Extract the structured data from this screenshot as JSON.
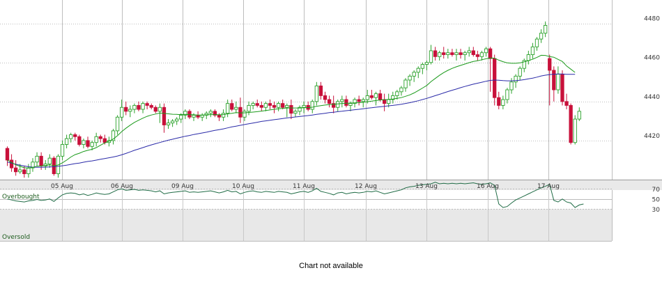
{
  "chart_data": [
    {
      "type": "candlestick",
      "x_tick_labels": [
        "05 Aug",
        "06 Aug",
        "09 Aug",
        "10 Aug",
        "11 Aug",
        "12 Aug",
        "13 Aug",
        "16 Aug",
        "17 Aug"
      ],
      "y_tick_labels": [
        "4420",
        "4440",
        "4460",
        "4480"
      ],
      "ylim": [
        4400,
        4492
      ],
      "grid": true,
      "colors": {
        "up": "#2aa12a",
        "down": "#c8103a",
        "sma_short": "#1a9a1a",
        "sma_long": "#2a2aa8",
        "grid": "#bdbdbd"
      },
      "candles": [
        [
          4416,
          4417,
          4407,
          4410
        ],
        [
          4410,
          4413,
          4404,
          4406
        ],
        [
          4406,
          4410,
          4402,
          4404
        ],
        [
          4404,
          4408,
          4403,
          4405
        ],
        [
          4405,
          4407,
          4401,
          4403
        ],
        [
          4403,
          4408,
          4401,
          4406
        ],
        [
          4406,
          4411,
          4404,
          4409
        ],
        [
          4409,
          4414,
          4407,
          4412
        ],
        [
          4412,
          4414,
          4405,
          4407
        ],
        [
          4407,
          4410,
          4405,
          4408
        ],
        [
          4408,
          4413,
          4406,
          4411
        ],
        [
          4411,
          4412,
          4402,
          4403
        ],
        [
          4403,
          4413,
          4401,
          4412
        ],
        [
          4412,
          4420,
          4410,
          4418
        ],
        [
          4418,
          4423,
          4416,
          4421
        ],
        [
          4421,
          4424,
          4419,
          4423
        ],
        [
          4423,
          4424,
          4420,
          4422
        ],
        [
          4422,
          4423,
          4417,
          4418
        ],
        [
          4418,
          4421,
          4416,
          4420
        ],
        [
          4420,
          4422,
          4416,
          4417
        ],
        [
          4417,
          4420,
          4415,
          4419
        ],
        [
          4419,
          4424,
          4417,
          4422
        ],
        [
          4422,
          4423,
          4419,
          4421
        ],
        [
          4421,
          4423,
          4418,
          4419
        ],
        [
          4419,
          4422,
          4417,
          4420
        ],
        [
          4420,
          4426,
          4418,
          4425
        ],
        [
          4425,
          4433,
          4423,
          4432
        ],
        [
          4432,
          4441,
          4430,
          4437
        ],
        [
          4437,
          4440,
          4433,
          4435
        ],
        [
          4435,
          4438,
          4432,
          4436
        ],
        [
          4436,
          4439,
          4434,
          4438
        ],
        [
          4438,
          4440,
          4435,
          4436
        ],
        [
          4436,
          4440,
          4434,
          4439
        ],
        [
          4439,
          4440,
          4436,
          4438
        ],
        [
          4438,
          4439,
          4436,
          4437
        ],
        [
          4437,
          4438,
          4434,
          4435
        ],
        [
          4435,
          4439,
          4429,
          4437
        ],
        [
          4437,
          4439,
          4424,
          4428
        ],
        [
          4428,
          4431,
          4426,
          4429
        ],
        [
          4429,
          4431,
          4427,
          4430
        ],
        [
          4430,
          4432,
          4428,
          4431
        ],
        [
          4431,
          4434,
          4429,
          4433
        ],
        [
          4433,
          4436,
          4431,
          4435
        ],
        [
          4435,
          4436,
          4431,
          4432
        ],
        [
          4432,
          4434,
          4430,
          4433
        ],
        [
          4433,
          4435,
          4431,
          4432
        ],
        [
          4432,
          4434,
          4430,
          4433
        ],
        [
          4433,
          4435,
          4431,
          4434
        ],
        [
          4434,
          4436,
          4432,
          4435
        ],
        [
          4435,
          4436,
          4432,
          4433
        ],
        [
          4433,
          4434,
          4430,
          4432
        ],
        [
          4432,
          4436,
          4430,
          4434
        ],
        [
          4434,
          4441,
          4432,
          4439
        ],
        [
          4439,
          4441,
          4435,
          4436
        ],
        [
          4436,
          4440,
          4434,
          4437
        ],
        [
          4437,
          4442,
          4429,
          4432
        ],
        [
          4432,
          4436,
          4430,
          4435
        ],
        [
          4435,
          4440,
          4433,
          4438
        ],
        [
          4438,
          4440,
          4436,
          4439
        ],
        [
          4439,
          4441,
          4437,
          4438
        ],
        [
          4438,
          4440,
          4435,
          4437
        ],
        [
          4437,
          4440,
          4435,
          4439
        ],
        [
          4439,
          4441,
          4436,
          4438
        ],
        [
          4438,
          4440,
          4434,
          4437
        ],
        [
          4437,
          4440,
          4435,
          4439
        ],
        [
          4439,
          4441,
          4436,
          4437
        ],
        [
          4437,
          4439,
          4432,
          4438
        ],
        [
          4438,
          4441,
          4431,
          4434
        ],
        [
          4434,
          4436,
          4432,
          4435
        ],
        [
          4435,
          4438,
          4433,
          4437
        ],
        [
          4437,
          4440,
          4434,
          4438
        ],
        [
          4438,
          4440,
          4435,
          4436
        ],
        [
          4436,
          4441,
          4434,
          4440
        ],
        [
          4440,
          4450,
          4438,
          4448
        ],
        [
          4448,
          4450,
          4441,
          4443
        ],
        [
          4443,
          4445,
          4439,
          4441
        ],
        [
          4441,
          4443,
          4437,
          4439
        ],
        [
          4439,
          4443,
          4434,
          4437
        ],
        [
          4437,
          4441,
          4435,
          4440
        ],
        [
          4440,
          4443,
          4437,
          4441
        ],
        [
          4441,
          4443,
          4437,
          4438
        ],
        [
          4438,
          4440,
          4435,
          4439
        ],
        [
          4439,
          4442,
          4437,
          4441
        ],
        [
          4441,
          4443,
          4438,
          4440
        ],
        [
          4440,
          4442,
          4437,
          4441
        ],
        [
          4441,
          4446,
          4439,
          4443
        ],
        [
          4443,
          4446,
          4441,
          4442
        ],
        [
          4442,
          4445,
          4438,
          4444
        ],
        [
          4444,
          4446,
          4440,
          4441
        ],
        [
          4441,
          4444,
          4435,
          4439
        ],
        [
          4439,
          4444,
          4437,
          4441
        ],
        [
          4441,
          4445,
          4439,
          4443
        ],
        [
          4443,
          4446,
          4441,
          4445
        ],
        [
          4445,
          4448,
          4443,
          4447
        ],
        [
          4447,
          4452,
          4445,
          4451
        ],
        [
          4451,
          4454,
          4448,
          4453
        ],
        [
          4453,
          4456,
          4450,
          4455
        ],
        [
          4455,
          4458,
          4452,
          4457
        ],
        [
          4457,
          4460,
          4454,
          4459
        ],
        [
          4459,
          4461,
          4456,
          4460
        ],
        [
          4460,
          4469,
          4459,
          4466
        ],
        [
          4466,
          4468,
          4461,
          4463
        ],
        [
          4463,
          4466,
          4461,
          4465
        ],
        [
          4465,
          4468,
          4462,
          4464
        ],
        [
          4464,
          4467,
          4462,
          4465
        ],
        [
          4465,
          4467,
          4463,
          4464
        ],
        [
          4464,
          4467,
          4461,
          4465
        ],
        [
          4465,
          4467,
          4462,
          4464
        ],
        [
          4464,
          4466,
          4461,
          4465
        ],
        [
          4465,
          4468,
          4463,
          4466
        ],
        [
          4466,
          4468,
          4463,
          4464
        ],
        [
          4464,
          4466,
          4461,
          4463
        ],
        [
          4463,
          4466,
          4461,
          4465
        ],
        [
          4465,
          4468,
          4463,
          4467
        ],
        [
          4467,
          4468,
          4445,
          4462
        ],
        [
          4462,
          4464,
          4438,
          4442
        ],
        [
          4442,
          4445,
          4436,
          4438
        ],
        [
          4438,
          4443,
          4436,
          4441
        ],
        [
          4441,
          4447,
          4439,
          4446
        ],
        [
          4446,
          4452,
          4444,
          4450
        ],
        [
          4450,
          4454,
          4447,
          4453
        ],
        [
          4453,
          4458,
          4451,
          4457
        ],
        [
          4457,
          4462,
          4455,
          4461
        ],
        [
          4461,
          4466,
          4459,
          4464
        ],
        [
          4464,
          4470,
          4462,
          4468
        ],
        [
          4468,
          4473,
          4466,
          4472
        ],
        [
          4472,
          4477,
          4470,
          4475
        ],
        [
          4475,
          4481,
          4473,
          4479
        ],
        [
          4462,
          4464,
          4438,
          4456
        ],
        [
          4456,
          4458,
          4440,
          4446
        ],
        [
          4446,
          4458,
          4444,
          4454
        ],
        [
          4454,
          4456,
          4438,
          4440
        ],
        [
          4440,
          4444,
          4436,
          4438
        ],
        [
          4438,
          4439,
          4418,
          4419
        ],
        [
          4419,
          4433,
          4418,
          4431
        ],
        [
          4431,
          4437,
          4430,
          4435
        ]
      ],
      "sma_short": [
        4410,
        4408.7,
        4407.6,
        4406.8,
        4406.1,
        4405.9,
        4406.3,
        4406.9,
        4407,
        4407.2,
        4407.6,
        4407.1,
        4407.5,
        4408.6,
        4410,
        4411.6,
        4412.8,
        4413.5,
        4414.4,
        4415,
        4415.5,
        4416.4,
        4417.6,
        4418.8,
        4419.7,
        4420.8,
        4422.5,
        4424.6,
        4426.3,
        4427.9,
        4429.3,
        4430.4,
        4431.5,
        4432.4,
        4433.1,
        4433.6,
        4434.1,
        4433.9,
        4433.7,
        4433.5,
        4433.4,
        4433.3,
        4433.4,
        4433.3,
        4433.2,
        4433.1,
        4433.1,
        4433.2,
        4433.3,
        4433.3,
        4433.2,
        4433.3,
        4433.7,
        4434,
        4434.3,
        4434.2,
        4434.2,
        4434.4,
        4434.6,
        4434.8,
        4435.1,
        4435.4,
        4435.7,
        4436,
        4436.3,
        4436.5,
        4436.7,
        4436.7,
        4436.7,
        4436.7,
        4436.8,
        4436.9,
        4437.1,
        4437.6,
        4437.9,
        4438.2,
        4438.4,
        4438.6,
        4438.8,
        4439,
        4439.1,
        4439.2,
        4439.3,
        4439.4,
        4439.6,
        4439.9,
        4440.2,
        4440.5,
        4440.8,
        4440.9,
        4441.1,
        4441.3,
        4441.6,
        4442,
        4442.7,
        4443.4,
        4444.4,
        4445.6,
        4446.9,
        4448.2,
        4450.2,
        4451.8,
        4453.4,
        4454.8,
        4456,
        4457,
        4457.8,
        4458.5,
        4459.2,
        4459.9,
        4460.5,
        4460.9,
        4461.4,
        4461.9,
        4462.3,
        4462.2,
        4461.2,
        4460.4,
        4459.8,
        4459.6,
        4459.6,
        4459.8,
        4460.3,
        4460.9,
        4461.7,
        4462.6,
        4463.7,
        4463.6,
        4463,
        4462.7,
        4461.6,
        4460.5,
        4458.2,
        4456.6,
        4454.9
      ],
      "sma_long": [
        4409,
        4408.4,
        4407.9,
        4407.4,
        4407,
        4406.6,
        4406.4,
        4406.3,
        4406.3,
        4406.4,
        4406.5,
        4406.6,
        4406.8,
        4407.1,
        4407.4,
        4407.8,
        4408.2,
        4408.5,
        4408.9,
        4409.3,
        4409.6,
        4410,
        4410.4,
        4410.8,
        4411.2,
        4411.6,
        4412.1,
        4412.7,
        4413.4,
        4414.2,
        4415,
        4415.7,
        4416.4,
        4417.1,
        4417.8,
        4418.4,
        4419,
        4419.6,
        4420.2,
        4420.7,
        4421.2,
        4421.7,
        4422.2,
        4422.6,
        4423.1,
        4423.5,
        4423.9,
        4424.3,
        4424.8,
        4425.2,
        4425.6,
        4426,
        4426.5,
        4427,
        4427.4,
        4427.8,
        4428.2,
        4428.6,
        4429,
        4429.4,
        4429.8,
        4430.1,
        4430.4,
        4430.7,
        4431,
        4431.3,
        4431.6,
        4431.8,
        4432.1,
        4432.3,
        4432.6,
        4432.8,
        4433.1,
        4433.4,
        4433.7,
        4434,
        4434.3,
        4434.5,
        4434.8,
        4435,
        4435.3,
        4435.5,
        4435.8,
        4436,
        4436.3,
        4436.6,
        4436.8,
        4437.1,
        4437.3,
        4437.5,
        4437.8,
        4438,
        4438.3,
        4438.6,
        4439,
        4439.4,
        4439.9,
        4440.4,
        4441,
        4441.6,
        4442.3,
        4443,
        4443.7,
        4444.4,
        4445.1,
        4445.8,
        4446.4,
        4447.1,
        4447.7,
        4448.3,
        4448.9,
        4449.4,
        4449.9,
        4450.4,
        4450.8,
        4451,
        4450.9,
        4450.7,
        4450.6,
        4450.6,
        4450.7,
        4450.9,
        4451.2,
        4451.6,
        4452,
        4452.5,
        4453.1,
        4453.5,
        4453.8,
        4454,
        4454.1,
        4454.1,
        4453.9,
        4453.9,
        4453.9
      ],
      "oscillator": {
        "zone_labels": [
          "Overbought",
          "Oversold"
        ],
        "level_labels": [
          "70",
          "50",
          "30"
        ],
        "levels": [
          70,
          50,
          30
        ],
        "values": [
          50,
          48,
          46,
          45,
          44,
          46,
          47,
          49,
          47,
          48,
          50,
          45,
          52,
          58,
          61,
          62,
          61,
          58,
          60,
          57,
          59,
          62,
          60,
          59,
          60,
          64,
          68,
          70,
          67,
          68,
          69,
          67,
          68,
          67,
          66,
          64,
          66,
          60,
          62,
          63,
          64,
          65,
          66,
          63,
          64,
          63,
          64,
          65,
          66,
          64,
          62,
          64,
          67,
          64,
          65,
          60,
          63,
          65,
          66,
          64,
          63,
          65,
          64,
          63,
          65,
          64,
          63,
          60,
          62,
          64,
          65,
          63,
          66,
          71,
          65,
          63,
          61,
          58,
          62,
          63,
          60,
          62,
          63,
          62,
          63,
          65,
          64,
          66,
          63,
          60,
          62,
          64,
          66,
          68,
          72,
          74,
          75,
          77,
          78,
          79,
          80,
          83,
          80,
          81,
          80,
          81,
          80,
          81,
          80,
          81,
          82,
          80,
          79,
          80,
          82,
          77,
          40,
          33,
          35,
          42,
          48,
          52,
          56,
          60,
          64,
          68,
          72,
          75,
          79,
          47,
          44,
          50,
          44,
          42,
          33,
          38,
          40
        ]
      }
    }
  ],
  "footer": {
    "text": "Chart not available"
  }
}
